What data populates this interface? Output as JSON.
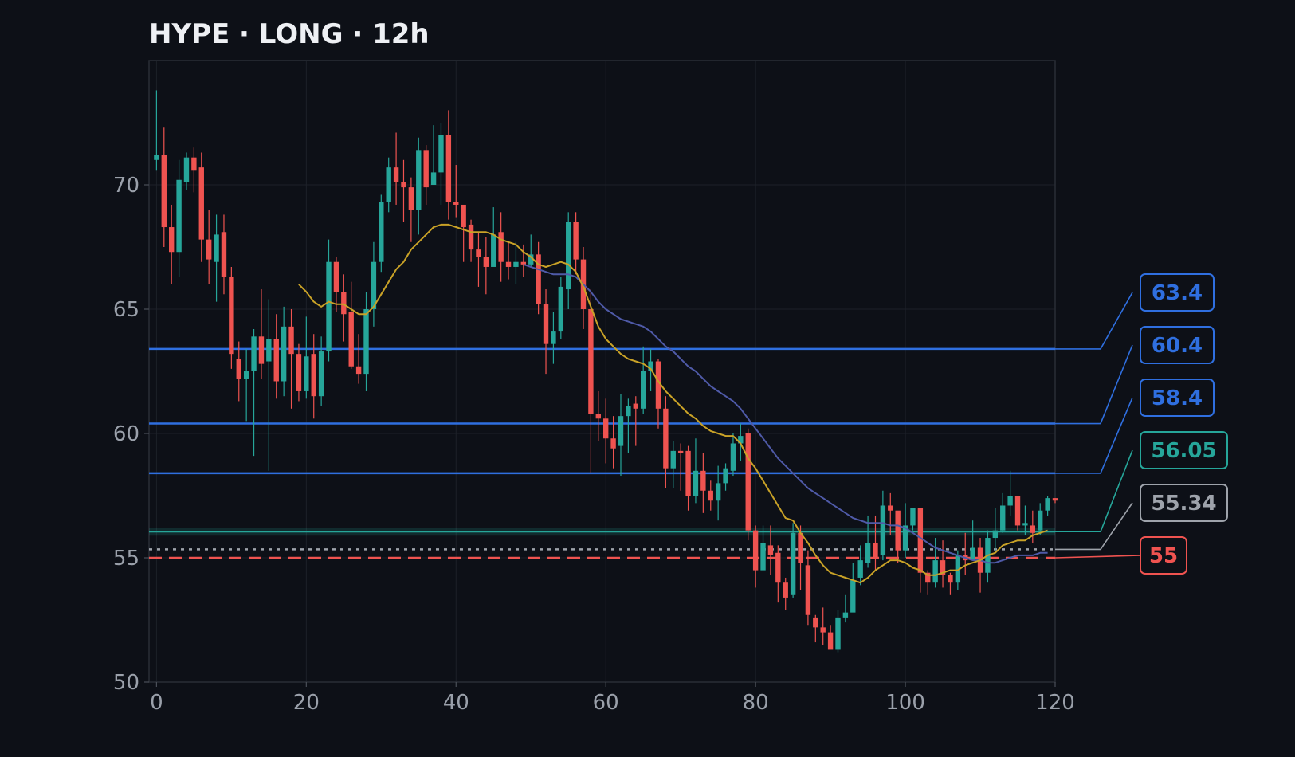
{
  "chart_data": {
    "type": "candlestick",
    "title": "HYPE · LONG · 12h",
    "xlim": [
      -1,
      120
    ],
    "ylim": [
      50,
      75
    ],
    "x_ticks": [
      0,
      20,
      40,
      60,
      80,
      100,
      120
    ],
    "y_ticks": [
      50,
      55,
      60,
      65,
      70
    ],
    "grid": true,
    "colors": {
      "background": "#0d1017",
      "plot_frame": "#2a2e36",
      "grid": "#1d2129",
      "up": "#26a69a",
      "down": "#ef5350",
      "ma_fast": "#c9a227",
      "ma_slow": "#4f5aa8",
      "level_blue": "#2f6fe0",
      "level_teal": "#26a69a",
      "level_gray": "#9ea3ab",
      "level_red": "#ef5350"
    },
    "levels": [
      {
        "label": "63.4",
        "value": 63.4,
        "color": "#2f6fe0",
        "style": "solid"
      },
      {
        "label": "60.4",
        "value": 60.4,
        "color": "#2f6fe0",
        "style": "solid"
      },
      {
        "label": "58.4",
        "value": 58.4,
        "color": "#2f6fe0",
        "style": "solid"
      },
      {
        "label": "56.05",
        "value": 56.05,
        "color": "#26a69a",
        "style": "band"
      },
      {
        "label": "55.34",
        "value": 55.34,
        "color": "#9ea3ab",
        "style": "dotted"
      },
      {
        "label": "55",
        "value": 55.0,
        "color": "#ef5350",
        "style": "dashed"
      }
    ],
    "candles": [
      [
        71.0,
        71.2,
        73.8,
        70.6
      ],
      [
        71.2,
        68.3,
        72.3,
        67.5
      ],
      [
        68.3,
        67.3,
        69.2,
        66.0
      ],
      [
        67.3,
        70.2,
        71.0,
        66.3
      ],
      [
        70.1,
        71.1,
        71.3,
        69.8
      ],
      [
        71.1,
        70.6,
        71.5,
        69.7
      ],
      [
        70.7,
        67.8,
        71.3,
        66.9
      ],
      [
        67.8,
        67.0,
        69.0,
        66.0
      ],
      [
        66.9,
        68.0,
        68.8,
        65.3
      ],
      [
        68.1,
        66.3,
        68.8,
        65.6
      ],
      [
        66.3,
        63.2,
        66.7,
        62.6
      ],
      [
        63.0,
        62.2,
        63.7,
        61.3
      ],
      [
        62.2,
        62.5,
        63.4,
        60.5
      ],
      [
        62.5,
        63.9,
        64.2,
        59.1
      ],
      [
        63.9,
        62.8,
        65.8,
        62.2
      ],
      [
        62.9,
        63.8,
        65.4,
        58.5
      ],
      [
        63.8,
        62.1,
        64.8,
        61.4
      ],
      [
        62.1,
        64.3,
        65.1,
        61.5
      ],
      [
        64.3,
        63.2,
        65.0,
        61.0
      ],
      [
        63.2,
        61.7,
        63.6,
        61.3
      ],
      [
        61.7,
        63.1,
        64.7,
        61.4
      ],
      [
        63.2,
        61.5,
        64.0,
        60.6
      ],
      [
        61.5,
        63.3,
        63.9,
        61.1
      ],
      [
        63.3,
        66.9,
        67.8,
        62.9
      ],
      [
        66.9,
        65.7,
        67.1,
        64.9
      ],
      [
        65.7,
        64.8,
        66.4,
        63.7
      ],
      [
        64.9,
        62.7,
        66.1,
        62.6
      ],
      [
        62.7,
        62.4,
        64.0,
        62.0
      ],
      [
        62.4,
        65.0,
        65.7,
        61.7
      ],
      [
        65.0,
        66.9,
        67.7,
        64.3
      ],
      [
        66.9,
        69.3,
        69.6,
        66.5
      ],
      [
        69.3,
        70.7,
        71.1,
        68.9
      ],
      [
        70.7,
        70.1,
        72.1,
        69.2
      ],
      [
        70.1,
        69.9,
        71.0,
        68.5
      ],
      [
        69.9,
        69.0,
        70.3,
        67.7
      ],
      [
        69.0,
        71.4,
        71.9,
        68.0
      ],
      [
        71.4,
        69.9,
        71.6,
        69.2
      ],
      [
        70.0,
        70.5,
        72.4,
        70.0
      ],
      [
        70.5,
        72.0,
        72.5,
        69.2
      ],
      [
        72.0,
        69.3,
        73.0,
        68.6
      ],
      [
        69.3,
        69.2,
        70.8,
        68.7
      ],
      [
        69.2,
        68.3,
        68.7,
        66.9
      ],
      [
        68.4,
        67.4,
        68.6,
        66.9
      ],
      [
        67.4,
        67.1,
        68.1,
        65.9
      ],
      [
        67.1,
        66.7,
        67.9,
        65.6
      ],
      [
        66.7,
        68.0,
        69.1,
        67.0
      ],
      [
        68.1,
        66.9,
        68.9,
        66.1
      ],
      [
        66.9,
        66.7,
        67.7,
        66.2
      ],
      [
        66.7,
        66.9,
        67.7,
        66.0
      ],
      [
        66.9,
        66.8,
        67.6,
        66.3
      ],
      [
        66.8,
        67.2,
        68.0,
        66.7
      ],
      [
        67.2,
        65.2,
        67.7,
        64.8
      ],
      [
        65.2,
        63.6,
        65.8,
        62.4
      ],
      [
        63.6,
        64.1,
        64.9,
        62.8
      ],
      [
        64.1,
        65.9,
        66.3,
        63.8
      ],
      [
        65.8,
        68.5,
        68.9,
        65.0
      ],
      [
        68.5,
        67.0,
        68.9,
        66.4
      ],
      [
        67.0,
        65.0,
        67.5,
        64.2
      ],
      [
        65.0,
        60.8,
        65.8,
        58.4
      ],
      [
        60.8,
        60.6,
        61.7,
        59.7
      ],
      [
        60.6,
        59.8,
        61.4,
        58.8
      ],
      [
        59.8,
        59.4,
        60.7,
        58.6
      ],
      [
        59.5,
        60.7,
        61.6,
        58.3
      ],
      [
        60.7,
        61.1,
        61.4,
        59.2
      ],
      [
        61.2,
        61.0,
        61.5,
        59.5
      ],
      [
        61.0,
        62.5,
        63.5,
        60.8
      ],
      [
        62.5,
        62.9,
        63.4,
        61.7
      ],
      [
        62.9,
        61.0,
        63.0,
        60.2
      ],
      [
        61.0,
        58.6,
        61.5,
        57.8
      ],
      [
        58.6,
        59.3,
        59.7,
        57.8
      ],
      [
        59.3,
        59.2,
        59.6,
        57.7
      ],
      [
        59.3,
        57.5,
        59.5,
        56.9
      ],
      [
        57.5,
        58.5,
        59.8,
        57.2
      ],
      [
        58.5,
        57.7,
        59.2,
        56.8
      ],
      [
        57.7,
        57.3,
        58.1,
        56.9
      ],
      [
        57.3,
        58.0,
        58.7,
        56.5
      ],
      [
        58.0,
        58.6,
        58.8,
        57.7
      ],
      [
        58.5,
        59.6,
        60.0,
        58.3
      ],
      [
        59.6,
        59.9,
        60.4,
        58.9
      ],
      [
        60.0,
        56.1,
        60.2,
        55.7
      ],
      [
        56.1,
        54.5,
        56.3,
        53.8
      ],
      [
        54.5,
        55.6,
        56.3,
        54.8
      ],
      [
        55.5,
        55.1,
        56.3,
        54.3
      ],
      [
        55.2,
        54.0,
        55.5,
        53.2
      ],
      [
        54.0,
        53.4,
        54.2,
        52.9
      ],
      [
        53.5,
        56.0,
        56.4,
        53.4
      ],
      [
        56.0,
        54.8,
        56.3,
        53.7
      ],
      [
        54.7,
        52.7,
        55.3,
        52.3
      ],
      [
        52.6,
        52.2,
        52.7,
        51.6
      ],
      [
        52.2,
        52.0,
        53.0,
        51.5
      ],
      [
        52.0,
        51.3,
        52.3,
        51.4
      ],
      [
        51.3,
        52.6,
        52.9,
        51.2
      ],
      [
        52.6,
        52.8,
        53.5,
        52.4
      ],
      [
        52.8,
        54.1,
        54.8,
        52.9
      ],
      [
        54.2,
        54.9,
        55.5,
        53.9
      ],
      [
        54.8,
        55.6,
        56.7,
        54.6
      ],
      [
        55.6,
        55.0,
        56.7,
        54.5
      ],
      [
        55.1,
        57.1,
        57.7,
        54.9
      ],
      [
        57.1,
        56.9,
        57.6,
        55.9
      ],
      [
        56.9,
        55.3,
        56.7,
        54.8
      ],
      [
        55.3,
        56.3,
        57.2,
        55.0
      ],
      [
        56.3,
        57.0,
        57.0,
        56.1
      ],
      [
        57.0,
        54.4,
        57.0,
        53.6
      ],
      [
        54.4,
        54.0,
        54.5,
        53.5
      ],
      [
        54.0,
        54.9,
        55.8,
        53.8
      ],
      [
        54.9,
        54.3,
        55.7,
        53.8
      ],
      [
        54.3,
        54.0,
        54.4,
        53.5
      ],
      [
        54.0,
        55.1,
        55.3,
        53.7
      ],
      [
        55.1,
        54.9,
        56.0,
        54.3
      ],
      [
        54.9,
        55.4,
        56.5,
        55.0
      ],
      [
        55.4,
        54.4,
        55.8,
        53.6
      ],
      [
        54.4,
        55.8,
        56.1,
        54.0
      ],
      [
        55.8,
        56.1,
        57.0,
        55.2
      ],
      [
        56.1,
        57.1,
        57.6,
        56.0
      ],
      [
        57.1,
        57.5,
        58.5,
        56.7
      ],
      [
        57.5,
        56.3,
        57.1,
        56.1
      ],
      [
        56.3,
        56.4,
        57.1,
        55.9
      ],
      [
        56.3,
        56.0,
        56.9,
        55.6
      ],
      [
        56.1,
        56.9,
        57.2,
        55.9
      ],
      [
        56.9,
        57.4,
        57.5,
        56.7
      ],
      [
        57.4,
        57.3,
        57.4,
        57.2
      ]
    ],
    "ma_fast": [
      [
        19,
        66.0
      ],
      [
        20,
        65.7
      ],
      [
        21,
        65.3
      ],
      [
        22,
        65.1
      ],
      [
        23,
        65.3
      ],
      [
        24,
        65.2
      ],
      [
        25,
        65.2
      ],
      [
        26,
        65.0
      ],
      [
        27,
        64.8
      ],
      [
        28,
        64.8
      ],
      [
        29,
        65.1
      ],
      [
        30,
        65.6
      ],
      [
        31,
        66.1
      ],
      [
        32,
        66.6
      ],
      [
        33,
        66.9
      ],
      [
        34,
        67.4
      ],
      [
        35,
        67.7
      ],
      [
        36,
        68.0
      ],
      [
        37,
        68.3
      ],
      [
        38,
        68.4
      ],
      [
        39,
        68.4
      ],
      [
        40,
        68.3
      ],
      [
        41,
        68.2
      ],
      [
        42,
        68.1
      ],
      [
        43,
        68.1
      ],
      [
        44,
        68.1
      ],
      [
        45,
        68.0
      ],
      [
        46,
        67.8
      ],
      [
        47,
        67.7
      ],
      [
        48,
        67.6
      ],
      [
        49,
        67.3
      ],
      [
        50,
        67.1
      ],
      [
        51,
        66.8
      ],
      [
        52,
        66.7
      ],
      [
        53,
        66.8
      ],
      [
        54,
        66.9
      ],
      [
        55,
        66.8
      ],
      [
        56,
        66.5
      ],
      [
        57,
        65.9
      ],
      [
        58,
        65.1
      ],
      [
        59,
        64.3
      ],
      [
        60,
        63.8
      ],
      [
        61,
        63.5
      ],
      [
        62,
        63.2
      ],
      [
        63,
        63.0
      ],
      [
        64,
        62.9
      ],
      [
        65,
        62.8
      ],
      [
        66,
        62.6
      ],
      [
        67,
        62.1
      ],
      [
        68,
        61.7
      ],
      [
        69,
        61.4
      ],
      [
        70,
        61.1
      ],
      [
        71,
        60.8
      ],
      [
        72,
        60.6
      ],
      [
        73,
        60.3
      ],
      [
        74,
        60.1
      ],
      [
        75,
        60.0
      ],
      [
        76,
        59.9
      ],
      [
        77,
        59.9
      ],
      [
        78,
        59.6
      ],
      [
        79,
        59.0
      ],
      [
        80,
        58.6
      ],
      [
        81,
        58.1
      ],
      [
        82,
        57.6
      ],
      [
        83,
        57.1
      ],
      [
        84,
        56.6
      ],
      [
        85,
        56.5
      ],
      [
        86,
        56.0
      ],
      [
        87,
        55.6
      ],
      [
        88,
        55.1
      ],
      [
        89,
        54.7
      ],
      [
        90,
        54.4
      ],
      [
        91,
        54.3
      ],
      [
        92,
        54.2
      ],
      [
        93,
        54.1
      ],
      [
        94,
        54.0
      ],
      [
        95,
        54.2
      ],
      [
        96,
        54.5
      ],
      [
        97,
        54.7
      ],
      [
        98,
        54.9
      ],
      [
        99,
        54.9
      ],
      [
        100,
        54.8
      ],
      [
        101,
        54.6
      ],
      [
        102,
        54.5
      ],
      [
        103,
        54.3
      ],
      [
        104,
        54.3
      ],
      [
        105,
        54.4
      ],
      [
        106,
        54.5
      ],
      [
        107,
        54.5
      ],
      [
        108,
        54.7
      ],
      [
        109,
        54.8
      ],
      [
        110,
        54.9
      ],
      [
        111,
        55.1
      ],
      [
        112,
        55.2
      ],
      [
        113,
        55.5
      ],
      [
        114,
        55.6
      ],
      [
        115,
        55.7
      ],
      [
        116,
        55.7
      ],
      [
        117,
        55.9
      ],
      [
        118,
        56.0
      ],
      [
        119,
        56.1
      ]
    ],
    "ma_slow": [
      [
        49,
        66.8
      ],
      [
        50,
        66.7
      ],
      [
        51,
        66.6
      ],
      [
        52,
        66.5
      ],
      [
        53,
        66.4
      ],
      [
        54,
        66.4
      ],
      [
        55,
        66.4
      ],
      [
        56,
        66.3
      ],
      [
        57,
        66.0
      ],
      [
        58,
        65.7
      ],
      [
        59,
        65.3
      ],
      [
        60,
        65.0
      ],
      [
        61,
        64.8
      ],
      [
        62,
        64.6
      ],
      [
        63,
        64.5
      ],
      [
        64,
        64.4
      ],
      [
        65,
        64.3
      ],
      [
        66,
        64.1
      ],
      [
        67,
        63.8
      ],
      [
        68,
        63.5
      ],
      [
        69,
        63.3
      ],
      [
        70,
        63.0
      ],
      [
        71,
        62.7
      ],
      [
        72,
        62.5
      ],
      [
        73,
        62.2
      ],
      [
        74,
        61.9
      ],
      [
        75,
        61.7
      ],
      [
        76,
        61.5
      ],
      [
        77,
        61.3
      ],
      [
        78,
        61.0
      ],
      [
        79,
        60.6
      ],
      [
        80,
        60.2
      ],
      [
        81,
        59.8
      ],
      [
        82,
        59.4
      ],
      [
        83,
        59.0
      ],
      [
        84,
        58.7
      ],
      [
        85,
        58.4
      ],
      [
        86,
        58.1
      ],
      [
        87,
        57.8
      ],
      [
        88,
        57.6
      ],
      [
        89,
        57.4
      ],
      [
        90,
        57.2
      ],
      [
        91,
        57.0
      ],
      [
        92,
        56.8
      ],
      [
        93,
        56.6
      ],
      [
        94,
        56.5
      ],
      [
        95,
        56.4
      ],
      [
        96,
        56.4
      ],
      [
        97,
        56.4
      ],
      [
        98,
        56.3
      ],
      [
        99,
        56.3
      ],
      [
        100,
        56.2
      ],
      [
        101,
        56.0
      ],
      [
        102,
        55.8
      ],
      [
        103,
        55.6
      ],
      [
        104,
        55.4
      ],
      [
        105,
        55.3
      ],
      [
        106,
        55.2
      ],
      [
        107,
        55.1
      ],
      [
        108,
        55.0
      ],
      [
        109,
        54.9
      ],
      [
        110,
        54.9
      ],
      [
        111,
        54.8
      ],
      [
        112,
        54.8
      ],
      [
        113,
        54.9
      ],
      [
        114,
        55.0
      ],
      [
        115,
        55.1
      ],
      [
        116,
        55.1
      ],
      [
        117,
        55.1
      ],
      [
        118,
        55.2
      ],
      [
        119,
        55.2
      ]
    ]
  }
}
